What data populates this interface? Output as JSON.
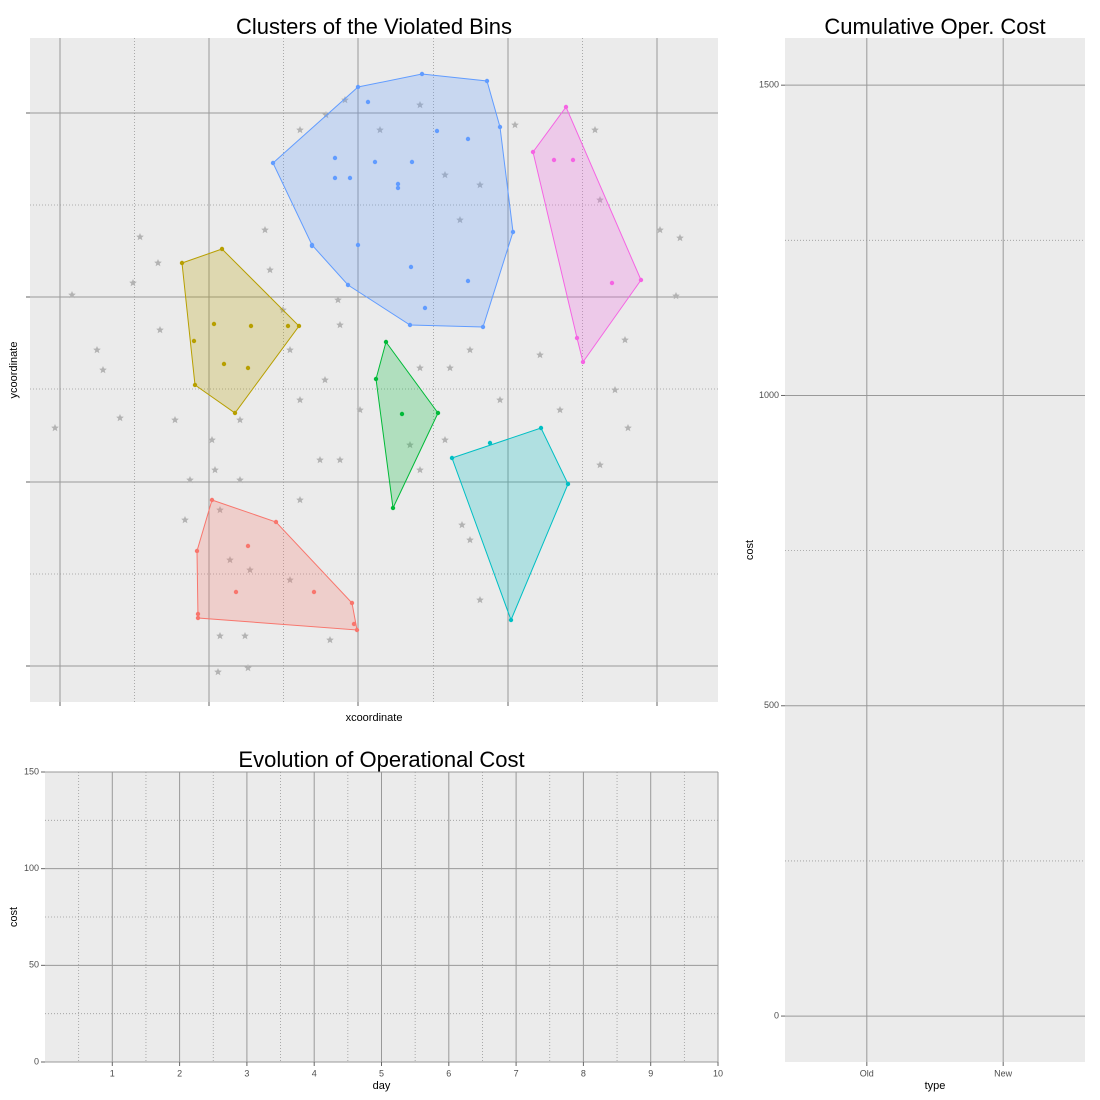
{
  "chart_data": [
    {
      "type": "scatter",
      "title": "Clusters of the Violated Bins",
      "x_label": "xcoordinate",
      "y_label": "ycoordinate",
      "xlim": [
        0,
        688
      ],
      "ylim": [
        0,
        664
      ],
      "xticks": [
        30,
        179,
        328,
        478,
        627
      ],
      "yticks": [
        36,
        220,
        405,
        589
      ],
      "grid": true,
      "minor_grid": true,
      "tick_labels": false,
      "background_points": {
        "color": "#b3b3b3",
        "x": [
          25,
          42,
          67,
          73,
          90,
          103,
          110,
          128,
          130,
          145,
          182,
          185,
          190,
          200,
          190,
          215,
          188,
          218,
          210,
          235,
          240,
          253,
          260,
          270,
          290,
          310,
          270,
          296,
          315,
          350,
          390,
          415,
          430,
          450,
          485,
          565,
          570,
          630,
          650,
          646,
          595,
          585,
          598,
          570,
          530,
          510,
          470,
          440,
          420,
          390,
          308,
          310,
          295,
          330,
          415,
          440,
          450,
          432,
          270,
          220,
          300,
          210,
          160,
          155,
          380,
          390,
          260
        ],
        "y": [
          274,
          407,
          352,
          332,
          284,
          419,
          465,
          439,
          372,
          282,
          262,
          232,
          192,
          142,
          66,
          66,
          30,
          34,
          282,
          472,
          432,
          392,
          352,
          302,
          242,
          242,
          572,
          587,
          602,
          572,
          597,
          527,
          482,
          517,
          577,
          572,
          502,
          472,
          464,
          406,
          362,
          312,
          274,
          237,
          292,
          347,
          302,
          352,
          334,
          334,
          402,
          377,
          322,
          292,
          262,
          162,
          102,
          177,
          202,
          132,
          62,
          222,
          222,
          182,
          257,
          232,
          122
        ]
      },
      "clusters": [
        {
          "color": "#F8766D",
          "hull_x": [
            182,
            246,
            322,
            327,
            168,
            167
          ],
          "hull_y": [
            202,
            180,
            99,
            72,
            84,
            151
          ],
          "x": [
            218,
            206,
            284,
            168,
            324
          ],
          "y": [
            156,
            110,
            110,
            88,
            78
          ]
        },
        {
          "color": "#B79F00",
          "hull_x": [
            152,
            192,
            269,
            205,
            165
          ],
          "hull_y": [
            439,
            453,
            376,
            289,
            317
          ],
          "x": [
            184,
            221,
            258,
            194,
            218,
            164
          ],
          "y": [
            378,
            376,
            376,
            338,
            334,
            361
          ]
        },
        {
          "color": "#00BA38",
          "hull_x": [
            356,
            408,
            363,
            346
          ],
          "hull_y": [
            360,
            289,
            194,
            323
          ],
          "x": [
            372
          ],
          "y": [
            288
          ]
        },
        {
          "color": "#00BFC4",
          "hull_x": [
            422,
            511,
            538,
            481
          ],
          "hull_y": [
            244,
            274,
            218,
            82
          ],
          "x": [
            460
          ],
          "y": [
            259
          ]
        },
        {
          "color": "#619CFF",
          "hull_x": [
            243,
            328,
            392,
            457,
            470,
            483,
            453,
            380,
            318,
            282
          ],
          "hull_y": [
            539,
            615,
            628,
            621,
            575,
            470,
            375,
            377,
            417,
            457
          ],
          "x": [
            338,
            407,
            320,
            345,
            382,
            368,
            368,
            305,
            305,
            328,
            282,
            381,
            395,
            438,
            438
          ],
          "y": [
            600,
            571,
            524,
            540,
            540,
            518,
            514,
            544,
            524,
            457,
            456,
            435,
            394,
            421,
            563
          ]
        },
        {
          "color": "#F564E3",
          "hull_x": [
            503,
            536,
            611,
            553,
            547
          ],
          "hull_y": [
            550,
            595,
            422,
            340,
            364
          ],
          "x": [
            524,
            543,
            582
          ],
          "y": [
            542,
            542,
            419
          ]
        }
      ]
    },
    {
      "type": "line",
      "title": "Evolution of Operational Cost",
      "x_label": "day",
      "y_label": "cost",
      "xlim": [
        0,
        10
      ],
      "ylim": [
        0,
        150
      ],
      "xticks": [
        1,
        2,
        3,
        4,
        5,
        6,
        7,
        8,
        9,
        10
      ],
      "yticks": [
        0,
        50,
        100,
        150
      ],
      "grid": true,
      "minor_grid": true,
      "tick_labels": true
    },
    {
      "type": "bar",
      "title": "Cumulative Oper. Cost",
      "x_label": "type",
      "y_label": "cost",
      "categories": [
        "Old",
        "New"
      ],
      "ylim": [
        -74,
        1576
      ],
      "yticks": [
        0,
        500,
        1000,
        1500
      ],
      "grid": true,
      "minor_grid": true,
      "tick_labels": true
    }
  ]
}
